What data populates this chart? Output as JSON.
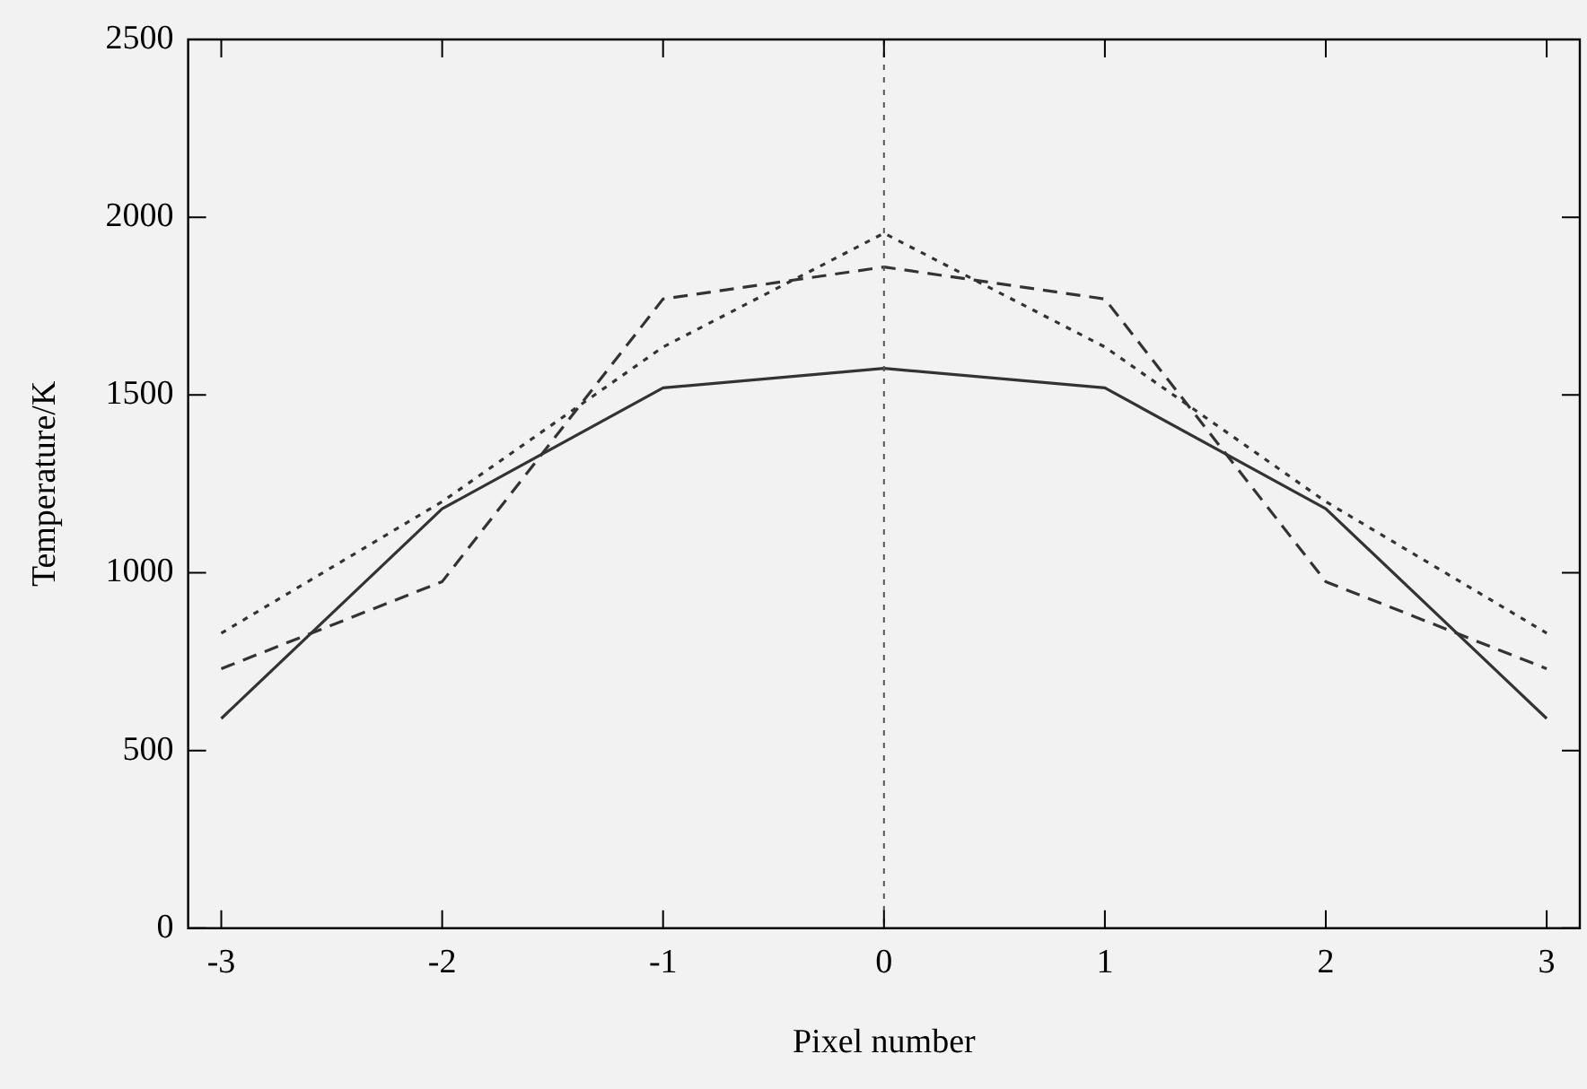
{
  "chart_data": {
    "type": "line",
    "xlabel": "Pixel number",
    "ylabel": "Temperature/K",
    "x": [
      -3,
      -2,
      -1,
      0,
      1,
      2,
      3
    ],
    "series": [
      {
        "color": "#333333",
        "line_style": "solid",
        "values": [
          590,
          1180,
          1520,
          1575,
          1520,
          1180,
          590
        ]
      },
      {
        "color": "#333333",
        "line_style": "dashed",
        "values": [
          730,
          975,
          1770,
          1860,
          1770,
          975,
          730
        ]
      },
      {
        "color": "#333333",
        "line_style": "dotted",
        "values": [
          830,
          1200,
          1635,
          1955,
          1635,
          1200,
          830
        ]
      }
    ],
    "xlim": [
      -3.15,
      3.15
    ],
    "xticks": [
      -3,
      -2,
      -1,
      0,
      1,
      2,
      3
    ],
    "ylim": [
      0,
      2500
    ],
    "yticks": [
      0,
      500,
      1000,
      1500,
      2000,
      2500
    ],
    "ref_lines": [
      {
        "axis": "x",
        "value": 0,
        "color": "#555555",
        "line_style": "dotted"
      }
    ],
    "grid": false,
    "legend": false,
    "marker": "none"
  }
}
